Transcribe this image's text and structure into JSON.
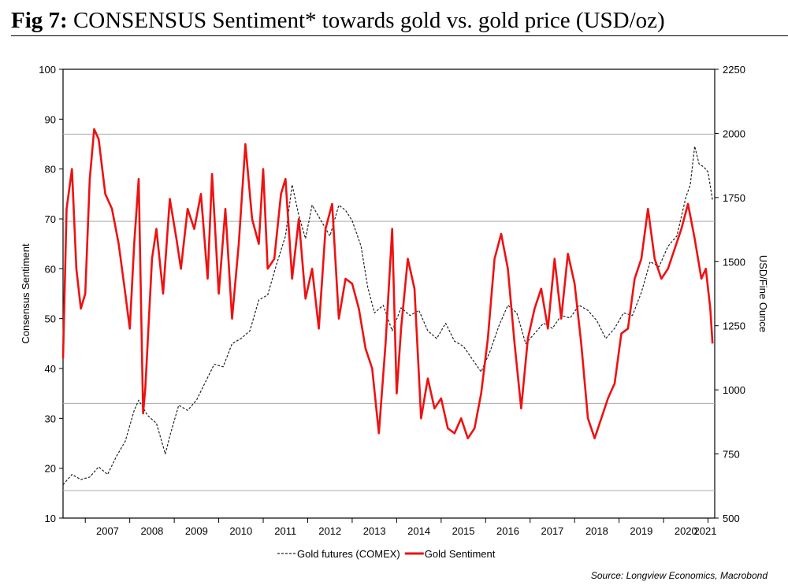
{
  "figure": {
    "label": "Fig 7:",
    "title": "CONSENSUS Sentiment* towards gold vs. gold price (USD/oz)",
    "source": "Source: Longview Economics, Macrobond"
  },
  "colors": {
    "sentiment": "#ee1111",
    "gold": "#222222",
    "grid": "#aaaaaa"
  },
  "chart_data": {
    "type": "line",
    "title": "CONSENSUS Sentiment* towards gold vs. gold price (USD/oz)",
    "x_range": [
      2006.5,
      2021.15
    ],
    "x_ticks": [
      2007,
      2008,
      2009,
      2010,
      2011,
      2012,
      2013,
      2014,
      2015,
      2016,
      2017,
      2018,
      2019,
      2020,
      2021
    ],
    "y_left": {
      "label": "Consensus Sentiment",
      "ylim": [
        10,
        100
      ],
      "ticks": [
        10,
        20,
        30,
        40,
        50,
        60,
        70,
        80,
        90,
        100
      ]
    },
    "y_right": {
      "label": "USD/Fine Ounce",
      "ylim": [
        500,
        2250
      ],
      "ticks": [
        500,
        750,
        1000,
        1250,
        1500,
        1750,
        2000,
        2250
      ]
    },
    "reference_lines_left": [
      15.5,
      33,
      69.5,
      87
    ],
    "legend": "bottom-center",
    "series": [
      {
        "name": "Gold futures (COMEX)",
        "axis": "right",
        "style": "dashed",
        "x": [
          2006.5,
          2006.7,
          2006.9,
          2007.1,
          2007.3,
          2007.5,
          2007.7,
          2007.9,
          2008.1,
          2008.2,
          2008.4,
          2008.6,
          2008.8,
          2008.9,
          2009.1,
          2009.3,
          2009.5,
          2009.7,
          2009.9,
          2010.1,
          2010.3,
          2010.5,
          2010.7,
          2010.9,
          2011.1,
          2011.3,
          2011.5,
          2011.65,
          2011.8,
          2011.95,
          2012.1,
          2012.3,
          2012.5,
          2012.7,
          2012.85,
          2013.0,
          2013.2,
          2013.35,
          2013.5,
          2013.7,
          2013.9,
          2014.1,
          2014.3,
          2014.5,
          2014.7,
          2014.9,
          2015.1,
          2015.3,
          2015.5,
          2015.7,
          2015.9,
          2016.1,
          2016.3,
          2016.5,
          2016.7,
          2016.9,
          2017.1,
          2017.3,
          2017.5,
          2017.7,
          2017.9,
          2018.1,
          2018.3,
          2018.5,
          2018.7,
          2018.9,
          2019.1,
          2019.3,
          2019.5,
          2019.7,
          2019.9,
          2020.1,
          2020.3,
          2020.5,
          2020.6,
          2020.7,
          2020.8,
          2020.9,
          2021.0,
          2021.1
        ],
        "values": [
          630,
          670,
          650,
          660,
          700,
          670,
          740,
          800,
          920,
          960,
          900,
          870,
          750,
          820,
          940,
          920,
          960,
          1030,
          1100,
          1090,
          1180,
          1200,
          1230,
          1350,
          1370,
          1490,
          1600,
          1800,
          1680,
          1590,
          1720,
          1660,
          1600,
          1720,
          1700,
          1660,
          1560,
          1400,
          1300,
          1330,
          1230,
          1320,
          1290,
          1310,
          1230,
          1200,
          1260,
          1190,
          1170,
          1120,
          1070,
          1150,
          1250,
          1330,
          1300,
          1180,
          1220,
          1260,
          1240,
          1290,
          1280,
          1330,
          1310,
          1270,
          1200,
          1240,
          1300,
          1290,
          1380,
          1500,
          1480,
          1560,
          1600,
          1750,
          1800,
          1950,
          1880,
          1870,
          1850,
          1740
        ]
      },
      {
        "name": "Gold Sentiment",
        "axis": "left",
        "style": "solid",
        "x": [
          2006.5,
          2006.58,
          2006.7,
          2006.8,
          2006.9,
          2007.0,
          2007.1,
          2007.2,
          2007.3,
          2007.45,
          2007.6,
          2007.75,
          2007.9,
          2008.0,
          2008.1,
          2008.2,
          2008.3,
          2008.35,
          2008.5,
          2008.6,
          2008.75,
          2008.9,
          2009.05,
          2009.15,
          2009.3,
          2009.45,
          2009.6,
          2009.75,
          2009.85,
          2010.0,
          2010.15,
          2010.3,
          2010.45,
          2010.6,
          2010.75,
          2010.9,
          2011.0,
          2011.1,
          2011.25,
          2011.4,
          2011.5,
          2011.65,
          2011.8,
          2011.95,
          2012.1,
          2012.25,
          2012.4,
          2012.55,
          2012.7,
          2012.85,
          2013.0,
          2013.15,
          2013.3,
          2013.45,
          2013.6,
          2013.75,
          2013.9,
          2014.0,
          2014.1,
          2014.25,
          2014.4,
          2014.55,
          2014.7,
          2014.85,
          2015.0,
          2015.15,
          2015.3,
          2015.45,
          2015.6,
          2015.75,
          2015.9,
          2016.05,
          2016.2,
          2016.35,
          2016.5,
          2016.65,
          2016.8,
          2016.95,
          2017.1,
          2017.25,
          2017.4,
          2017.55,
          2017.7,
          2017.85,
          2018.0,
          2018.15,
          2018.3,
          2018.45,
          2018.6,
          2018.75,
          2018.9,
          2019.05,
          2019.2,
          2019.35,
          2019.5,
          2019.65,
          2019.8,
          2019.95,
          2020.1,
          2020.25,
          2020.4,
          2020.55,
          2020.7,
          2020.85,
          2020.95,
          2021.05,
          2021.1
        ],
        "values": [
          42,
          72,
          80,
          60,
          52,
          55,
          78,
          88,
          86,
          75,
          72,
          65,
          55,
          48,
          65,
          78,
          31,
          36,
          62,
          68,
          55,
          74,
          66,
          60,
          72,
          68,
          75,
          58,
          79,
          55,
          72,
          50,
          65,
          85,
          70,
          65,
          80,
          60,
          62,
          75,
          78,
          58,
          70,
          54,
          60,
          48,
          68,
          73,
          50,
          58,
          57,
          52,
          44,
          40,
          27,
          45,
          68,
          35,
          48,
          62,
          56,
          30,
          38,
          32,
          34,
          28,
          27,
          30,
          26,
          28,
          35,
          46,
          62,
          67,
          60,
          45,
          32,
          46,
          52,
          56,
          48,
          62,
          50,
          63,
          57,
          45,
          30,
          26,
          30,
          34,
          37,
          47,
          48,
          58,
          62,
          72,
          62,
          58,
          60,
          64,
          68,
          73,
          66,
          58,
          60,
          52,
          45
        ]
      }
    ]
  }
}
